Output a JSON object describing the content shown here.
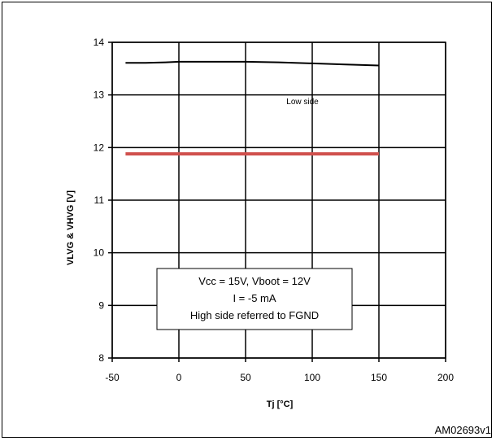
{
  "chart_data": {
    "type": "line",
    "title": "",
    "xlabel": "Tj [°C]",
    "ylabel": "VLVG & VHVG [V]",
    "xlim": [
      -50,
      200
    ],
    "ylim": [
      8,
      14
    ],
    "xticks": [
      -50,
      0,
      50,
      100,
      150,
      200
    ],
    "yticks": [
      8,
      9,
      10,
      11,
      12,
      13,
      14
    ],
    "grid": true,
    "series": [
      {
        "name": "Low side",
        "color": "#000000",
        "x": [
          -40,
          -25,
          -10,
          0,
          25,
          50,
          75,
          100,
          125,
          150
        ],
        "y": [
          13.61,
          13.61,
          13.62,
          13.63,
          13.63,
          13.63,
          13.62,
          13.6,
          13.58,
          13.56
        ]
      },
      {
        "name": "",
        "color": "#d0504d",
        "x": [
          -40,
          0,
          50,
          100,
          150
        ],
        "y": [
          11.88,
          11.88,
          11.88,
          11.88,
          11.88
        ]
      }
    ],
    "annotation_lines": [
      "Vcc = 15V, Vboot = 12V",
      "I = -5 mA",
      "High side referred to FGND"
    ]
  },
  "figure_code": "AM02693v1"
}
